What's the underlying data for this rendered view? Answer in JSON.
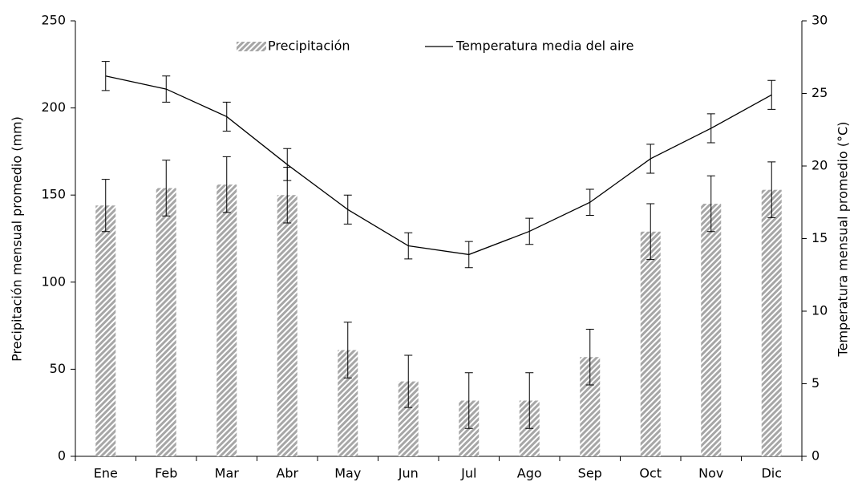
{
  "chart_data": {
    "type": "bar",
    "categories": [
      "Ene",
      "Feb",
      "Mar",
      "Abr",
      "May",
      "Jun",
      "Jul",
      "Ago",
      "Sep",
      "Oct",
      "Nov",
      "Dic"
    ],
    "series": [
      {
        "name": "Precipitación",
        "type": "bar",
        "color": "#a6a6a6",
        "values": [
          144,
          154,
          156,
          150,
          61,
          43,
          32,
          32,
          57,
          129,
          145,
          153
        ],
        "errors": [
          15,
          16,
          16,
          16,
          16,
          15,
          16,
          16,
          16,
          16,
          16,
          16
        ]
      },
      {
        "name": "Temperatura media del aire",
        "type": "line",
        "axis": "y2",
        "color": "#000000",
        "values": [
          26.2,
          25.3,
          23.4,
          20.1,
          17.0,
          14.5,
          13.9,
          15.5,
          17.5,
          20.5,
          22.6,
          24.9
        ],
        "errors": [
          1.0,
          0.9,
          1.0,
          1.1,
          1.0,
          0.9,
          0.9,
          0.9,
          0.9,
          1.0,
          1.0,
          1.0
        ]
      }
    ],
    "ylabel": "Precipitación mensual promedio (mm)",
    "y2label": "Temperatura mensual promedio (°C)",
    "ylim": [
      0,
      250
    ],
    "yticks": [
      0,
      50,
      100,
      150,
      200,
      250
    ],
    "y2lim": [
      0,
      30
    ],
    "y2ticks": [
      0,
      5,
      10,
      15,
      20,
      25,
      30
    ],
    "legend": "top"
  }
}
